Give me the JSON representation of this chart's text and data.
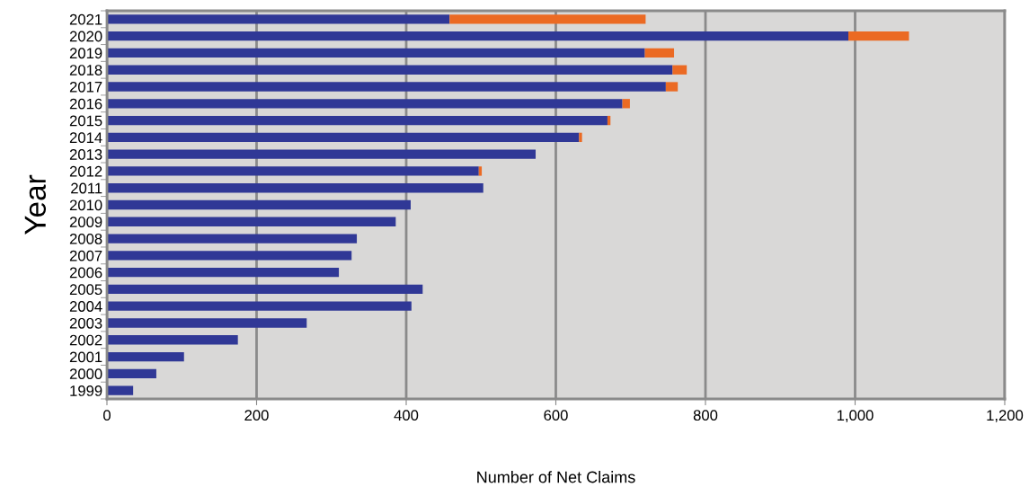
{
  "chart_data": {
    "type": "bar",
    "orientation": "horizontal",
    "stacked": true,
    "categories": [
      "2021",
      "2020",
      "2019",
      "2018",
      "2017",
      "2016",
      "2015",
      "2014",
      "2013",
      "2012",
      "2011",
      "2010",
      "2009",
      "2008",
      "2007",
      "2006",
      "2005",
      "2004",
      "2003",
      "2002",
      "2001",
      "2000",
      "1999"
    ],
    "series": [
      {
        "color": "#303896",
        "values": [
          458,
          991,
          719,
          756,
          747,
          689,
          669,
          631,
          573,
          497,
          503,
          406,
          386,
          334,
          327,
          310,
          422,
          407,
          267,
          175,
          103,
          66,
          35
        ]
      },
      {
        "color": "#eb6a23",
        "values": [
          262,
          81,
          39,
          19,
          16,
          10,
          4,
          4,
          null,
          4,
          null,
          null,
          null,
          null,
          null,
          null,
          null,
          null,
          null,
          null,
          null,
          null,
          null
        ]
      }
    ],
    "xlabel": "Number of Net Claims",
    "ylabel": "Year",
    "xlim": [
      0,
      1200
    ],
    "xticks": [
      0,
      200,
      400,
      600,
      800,
      {
        "value": 1000,
        "label": "1,000"
      },
      {
        "value": 1200,
        "label": "1,200"
      }
    ],
    "grid": "x",
    "legend": false
  }
}
